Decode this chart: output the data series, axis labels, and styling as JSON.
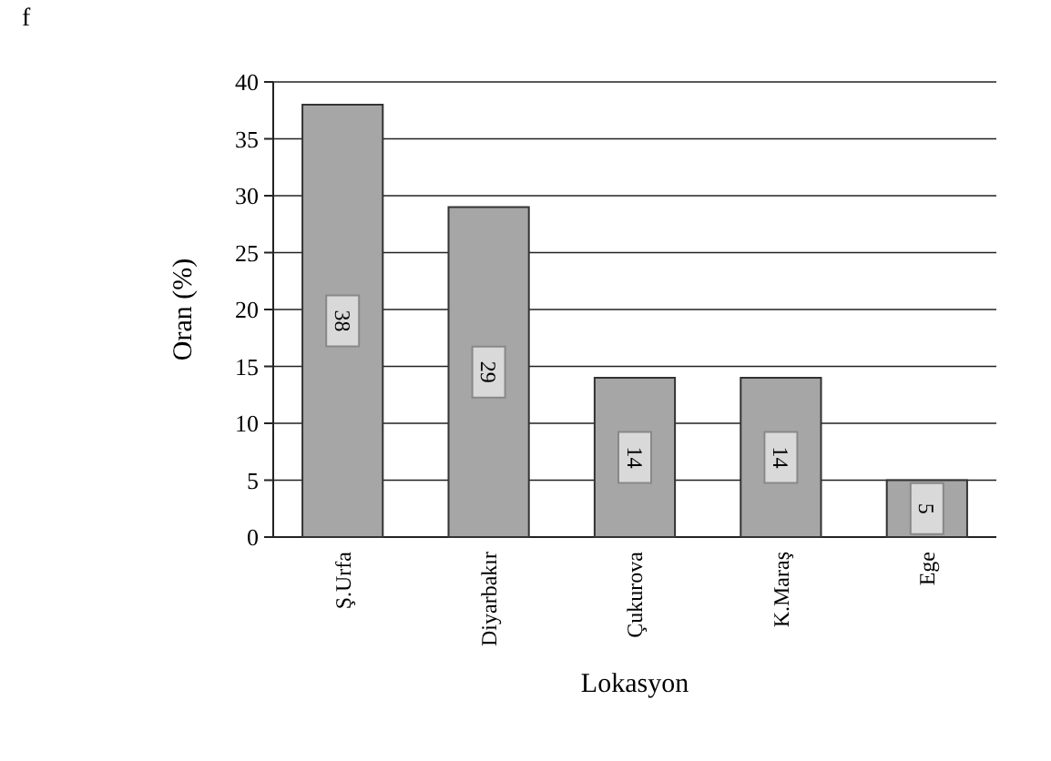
{
  "chart_data": {
    "type": "bar",
    "annotations": [
      "f"
    ],
    "xlabel": "Lokasyon",
    "ylabel": "Oran (%)",
    "categories": [
      "Ş.Urfa",
      "Diyarbakır",
      "Çukurova",
      "K.Maraş",
      "Ege"
    ],
    "values": [
      38,
      29,
      14,
      14,
      5
    ],
    "color": "#a6a6a6",
    "ylim": [
      0,
      40
    ],
    "yticks": [
      0,
      5,
      10,
      15,
      20,
      25,
      30,
      35,
      40
    ],
    "grid": "y",
    "data_labels": true
  }
}
